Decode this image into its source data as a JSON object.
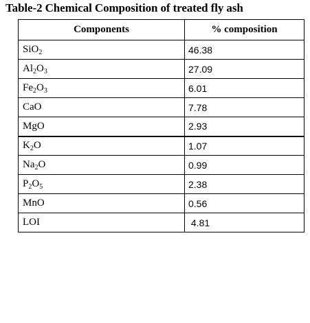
{
  "caption": "Table-2 Chemical Composition of treated fly ash",
  "table": {
    "headers": [
      "Components",
      "% composition"
    ],
    "rows": [
      {
        "formula": [
          {
            "t": "SiO"
          },
          {
            "s": "2"
          }
        ],
        "value": "46.38"
      },
      {
        "formula": [
          {
            "t": "Al"
          },
          {
            "s": "2"
          },
          {
            "t": "O"
          },
          {
            "s": "3"
          }
        ],
        "value": "27.09"
      },
      {
        "formula": [
          {
            "t": "Fe"
          },
          {
            "s": "2"
          },
          {
            "t": "O"
          },
          {
            "s": "3"
          }
        ],
        "value": "6.01"
      },
      {
        "formula": [
          {
            "t": "CaO"
          }
        ],
        "value": "7.78"
      },
      {
        "formula": [
          {
            "t": "MgO"
          }
        ],
        "value": "2.93"
      },
      {
        "formula": [
          {
            "t": "K"
          },
          {
            "s": "2"
          },
          {
            "t": "O"
          }
        ],
        "value": "1.07"
      },
      {
        "formula": [
          {
            "t": "Na"
          },
          {
            "s": "2"
          },
          {
            "t": "O"
          }
        ],
        "value": "0.99"
      },
      {
        "formula": [
          {
            "t": "P"
          },
          {
            "s": "2"
          },
          {
            "t": "O"
          },
          {
            "s": "5"
          }
        ],
        "value": "2.38"
      },
      {
        "formula": [
          {
            "t": "MnO"
          }
        ],
        "value": "0.56"
      },
      {
        "formula": [
          {
            "t": "LOI"
          }
        ],
        "value": " 4.81"
      }
    ]
  }
}
